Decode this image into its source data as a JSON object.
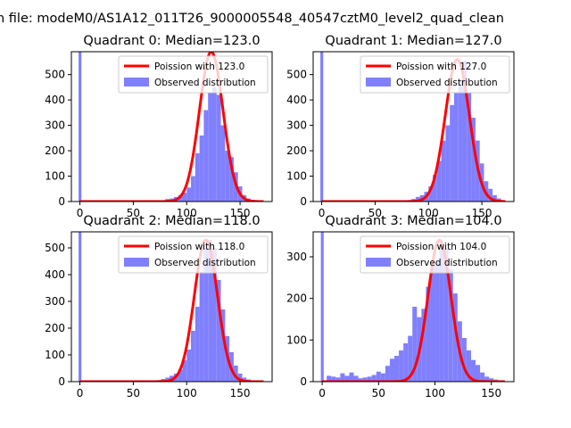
{
  "figure": {
    "suptitle": "n file: modeM0/AS1A12_011T26_9000005548_40547cztM0_level2_quad_clean"
  },
  "colors": {
    "poisson": "#ff0000",
    "observed": "#8080ff",
    "poisson_overlap": "#ff8080"
  },
  "chart_data": [
    {
      "type": "bar",
      "title": "Quadrant 0: Median=123.0",
      "median": 123.0,
      "xlim": [
        -8,
        180
      ],
      "ylim": [
        0,
        590
      ],
      "xticks": [
        0,
        50,
        100,
        150
      ],
      "yticks": [
        0,
        100,
        200,
        300,
        400,
        500
      ],
      "legend_position": "top-right",
      "series": [
        {
          "name": "Poission with 123.0",
          "type": "line",
          "lambda": 123.0,
          "scale": 590
        },
        {
          "name": "Observed distribution",
          "type": "histogram",
          "spike_at_zero": 590,
          "x": [
            72,
            76,
            80,
            84,
            88,
            92,
            96,
            100,
            104,
            108,
            112,
            116,
            120,
            124,
            128,
            132,
            136,
            140,
            144,
            148,
            152,
            156,
            160,
            164,
            168
          ],
          "values": [
            3,
            5,
            10,
            12,
            18,
            25,
            35,
            55,
            100,
            190,
            260,
            360,
            430,
            450,
            420,
            300,
            200,
            175,
            115,
            60,
            25,
            12,
            7,
            5,
            3
          ]
        }
      ]
    },
    {
      "type": "bar",
      "title": "Quadrant 1: Median=127.0",
      "median": 127.0,
      "xlim": [
        -8,
        180
      ],
      "ylim": [
        0,
        590
      ],
      "xticks": [
        0,
        50,
        100,
        150
      ],
      "yticks": [
        0,
        100,
        200,
        300,
        400,
        500
      ],
      "legend_position": "top-right",
      "series": [
        {
          "name": "Poission with 127.0",
          "type": "line",
          "lambda": 127.0,
          "scale": 560
        },
        {
          "name": "Observed distribution",
          "type": "histogram",
          "spike_at_zero": 590,
          "x": [
            76,
            80,
            84,
            88,
            92,
            96,
            100,
            104,
            108,
            112,
            116,
            120,
            124,
            128,
            132,
            136,
            140,
            144,
            148,
            152,
            156,
            160,
            164,
            168
          ],
          "values": [
            3,
            6,
            10,
            18,
            25,
            38,
            60,
            105,
            160,
            240,
            300,
            380,
            430,
            480,
            555,
            430,
            330,
            240,
            150,
            80,
            50,
            25,
            12,
            5
          ]
        }
      ]
    },
    {
      "type": "bar",
      "title": "Quadrant 2: Median=118.0",
      "median": 118.0,
      "xlim": [
        -8,
        180
      ],
      "ylim": [
        0,
        560
      ],
      "xticks": [
        0,
        50,
        100,
        150
      ],
      "yticks": [
        0,
        100,
        200,
        300,
        400,
        500
      ],
      "legend_position": "top-right",
      "series": [
        {
          "name": "Poission with 118.0",
          "type": "line",
          "lambda": 118.0,
          "scale": 530
        },
        {
          "name": "Observed distribution",
          "type": "histogram",
          "spike_at_zero": 560,
          "x": [
            68,
            72,
            76,
            80,
            84,
            88,
            92,
            96,
            100,
            104,
            108,
            112,
            116,
            120,
            124,
            128,
            132,
            136,
            140,
            144,
            148,
            152,
            156,
            160,
            164
          ],
          "values": [
            3,
            6,
            10,
            15,
            22,
            30,
            45,
            80,
            120,
            190,
            280,
            410,
            500,
            530,
            500,
            380,
            270,
            170,
            110,
            60,
            30,
            15,
            8,
            4,
            2
          ]
        }
      ]
    },
    {
      "type": "bar",
      "title": "Quadrant 3: Median=104.0",
      "median": 104.0,
      "xlim": [
        -8,
        170
      ],
      "ylim": [
        0,
        360
      ],
      "xticks": [
        0,
        50,
        100,
        150
      ],
      "yticks": [
        0,
        100,
        200,
        300
      ],
      "legend_position": "top-right",
      "series": [
        {
          "name": "Poission with 104.0",
          "type": "line",
          "lambda": 104.0,
          "scale": 340
        },
        {
          "name": "Observed distribution",
          "type": "histogram",
          "spike_at_zero": 360,
          "x": [
            4,
            8,
            12,
            16,
            20,
            24,
            28,
            32,
            36,
            40,
            44,
            48,
            52,
            56,
            60,
            64,
            68,
            72,
            76,
            80,
            84,
            88,
            92,
            96,
            100,
            104,
            108,
            112,
            116,
            120,
            124,
            128,
            132,
            136,
            140,
            144,
            148,
            152
          ],
          "values": [
            14,
            12,
            10,
            20,
            14,
            22,
            14,
            8,
            10,
            12,
            16,
            24,
            20,
            38,
            55,
            62,
            75,
            92,
            110,
            180,
            155,
            175,
            228,
            280,
            290,
            328,
            320,
            270,
            212,
            145,
            105,
            75,
            52,
            40,
            22,
            12,
            8,
            5
          ]
        }
      ]
    }
  ]
}
